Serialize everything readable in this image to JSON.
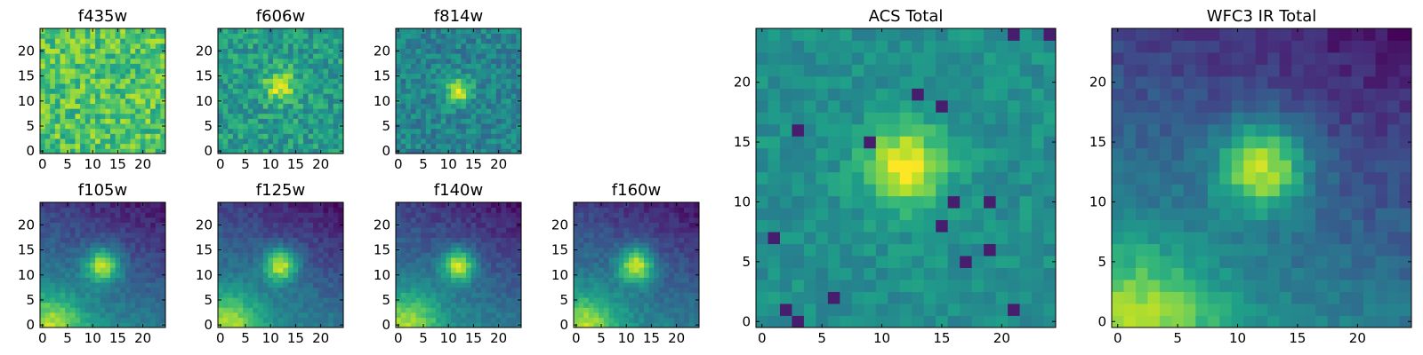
{
  "figure": {
    "colormap": "viridis",
    "colormap_stops": [
      "#440154",
      "#482878",
      "#3e4a89",
      "#31688e",
      "#26828e",
      "#1f9e89",
      "#35b779",
      "#6ece58",
      "#b5de2b",
      "#fde725"
    ]
  },
  "chart_data": [
    {
      "type": "heatmap",
      "title": "f435w",
      "grid_size": 25,
      "xticks": [
        0,
        5,
        10,
        15,
        20
      ],
      "yticks": [
        0,
        5,
        10,
        15,
        20
      ],
      "source": {
        "kind": "noise",
        "background": 0.72,
        "noise": 0.18,
        "seed": 11
      }
    },
    {
      "type": "heatmap",
      "title": "f606w",
      "grid_size": 25,
      "xticks": [
        0,
        5,
        10,
        15,
        20
      ],
      "yticks": [
        0,
        5,
        10,
        15,
        20
      ],
      "source": {
        "kind": "blob",
        "background": 0.55,
        "noise": 0.15,
        "center": [
          12,
          13
        ],
        "sigma": 2.2,
        "amplitude": 0.4,
        "seed": 23
      }
    },
    {
      "type": "heatmap",
      "title": "f814w",
      "grid_size": 25,
      "xticks": [
        0,
        5,
        10,
        15,
        20
      ],
      "yticks": [
        0,
        5,
        10,
        15,
        20
      ],
      "source": {
        "kind": "blob",
        "background": 0.45,
        "noise": 0.13,
        "center": [
          12,
          12
        ],
        "sigma": 1.8,
        "amplitude": 0.5,
        "seed": 37
      }
    },
    {
      "type": "heatmap",
      "title": "f105w",
      "grid_size": 25,
      "xticks": [
        0,
        5,
        10,
        15,
        20
      ],
      "yticks": [
        0,
        5,
        10,
        15,
        20
      ],
      "source": {
        "kind": "ir",
        "center": [
          12,
          12
        ],
        "sigma": 2.4,
        "amplitude": 0.6,
        "seed": 41
      }
    },
    {
      "type": "heatmap",
      "title": "f125w",
      "grid_size": 25,
      "xticks": [
        0,
        5,
        10,
        15,
        20
      ],
      "yticks": [
        0,
        5,
        10,
        15,
        20
      ],
      "source": {
        "kind": "ir",
        "center": [
          12,
          12
        ],
        "sigma": 2.3,
        "amplitude": 0.62,
        "seed": 53
      }
    },
    {
      "type": "heatmap",
      "title": "f140w",
      "grid_size": 25,
      "xticks": [
        0,
        5,
        10,
        15,
        20
      ],
      "yticks": [
        0,
        5,
        10,
        15,
        20
      ],
      "source": {
        "kind": "ir",
        "center": [
          12,
          12
        ],
        "sigma": 2.3,
        "amplitude": 0.62,
        "seed": 67
      }
    },
    {
      "type": "heatmap",
      "title": "f160w",
      "grid_size": 25,
      "xticks": [
        0,
        5,
        10,
        15,
        20
      ],
      "yticks": [
        0,
        5,
        10,
        15,
        20
      ],
      "source": {
        "kind": "ir",
        "center": [
          12,
          12
        ],
        "sigma": 2.5,
        "amplitude": 0.62,
        "seed": 79
      }
    },
    {
      "type": "heatmap",
      "title": "ACS Total",
      "grid_size": 25,
      "xticks": [
        0,
        5,
        10,
        15,
        20
      ],
      "yticks": [
        0,
        5,
        10,
        15,
        20
      ],
      "source": {
        "kind": "acs",
        "background": 0.5,
        "noise": 0.08,
        "center": [
          12,
          13
        ],
        "sigma": 2.3,
        "amplitude": 0.5,
        "seed": 91
      }
    },
    {
      "type": "heatmap",
      "title": "WFC3 IR Total",
      "grid_size": 25,
      "xticks": [
        0,
        5,
        10,
        15,
        20
      ],
      "yticks": [
        0,
        5,
        10,
        15,
        20
      ],
      "source": {
        "kind": "ir",
        "center": [
          12,
          13
        ],
        "sigma": 2.6,
        "amplitude": 0.62,
        "seed": 103
      }
    }
  ]
}
